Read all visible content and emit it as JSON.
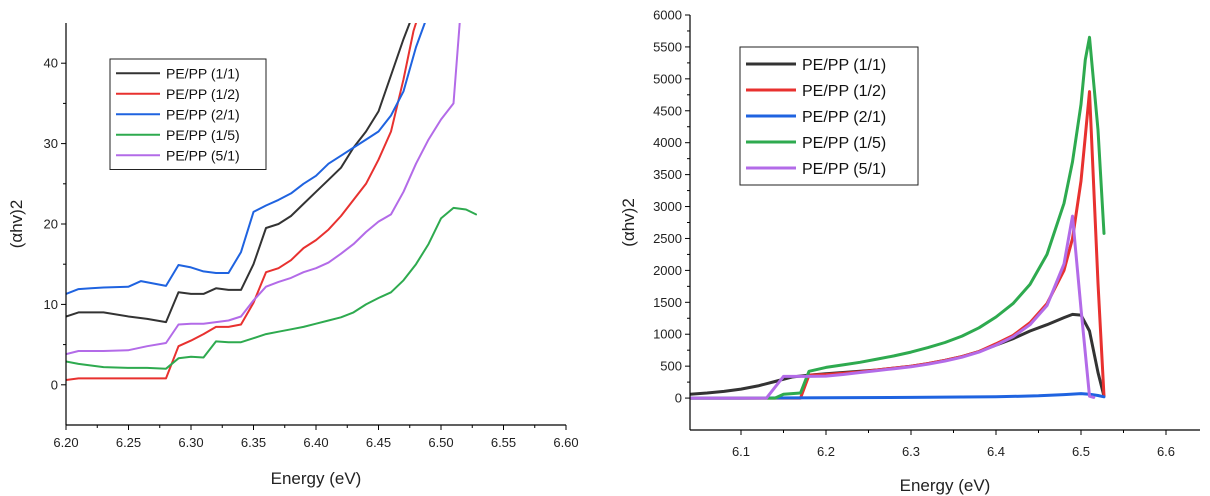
{
  "chart_data": [
    {
      "type": "line",
      "xlabel": "Energy (eV)",
      "ylabel": "(αhv)2",
      "xlim": [
        6.2,
        6.6
      ],
      "ylim": [
        -5,
        45
      ],
      "xticks": [
        "6.20",
        "6.25",
        "6.30",
        "6.35",
        "6.40",
        "6.45",
        "6.50",
        "6.55",
        "6.60"
      ],
      "yticks": [
        "0",
        "10",
        "20",
        "30",
        "40"
      ],
      "grid": false,
      "legend_position": "top-left",
      "series": [
        {
          "name": "PE/PP (1/1)",
          "color": "#333333",
          "x": [
            6.2,
            6.21,
            6.23,
            6.25,
            6.265,
            6.28,
            6.29,
            6.3,
            6.31,
            6.32,
            6.33,
            6.34,
            6.35,
            6.36,
            6.37,
            6.38,
            6.39,
            6.4,
            6.41,
            6.42,
            6.43,
            6.44,
            6.45,
            6.46,
            6.47,
            6.475,
            6.478
          ],
          "y": [
            8.5,
            9,
            9,
            8.5,
            8.2,
            7.8,
            11.5,
            11.3,
            11.3,
            12,
            11.8,
            11.8,
            15,
            19.5,
            20,
            21,
            22.5,
            24,
            25.5,
            27,
            29.5,
            31.5,
            34,
            38.5,
            43,
            45,
            46
          ]
        },
        {
          "name": "PE/PP (1/2)",
          "color": "#e8312f",
          "x": [
            6.2,
            6.21,
            6.23,
            6.25,
            6.265,
            6.28,
            6.29,
            6.3,
            6.31,
            6.32,
            6.33,
            6.34,
            6.35,
            6.36,
            6.37,
            6.38,
            6.39,
            6.4,
            6.41,
            6.42,
            6.43,
            6.44,
            6.45,
            6.46,
            6.47,
            6.478,
            6.482
          ],
          "y": [
            0.6,
            0.8,
            0.8,
            0.8,
            0.8,
            0.8,
            4.8,
            5.5,
            6.3,
            7.2,
            7.2,
            7.5,
            10.2,
            14,
            14.5,
            15.5,
            17,
            18,
            19.3,
            21,
            23,
            25,
            28,
            31.5,
            38,
            44,
            46
          ]
        },
        {
          "name": "PE/PP (2/1)",
          "color": "#1f63e0",
          "x": [
            6.2,
            6.21,
            6.22,
            6.23,
            6.25,
            6.26,
            6.28,
            6.29,
            6.3,
            6.31,
            6.32,
            6.33,
            6.34,
            6.35,
            6.36,
            6.37,
            6.38,
            6.39,
            6.4,
            6.41,
            6.42,
            6.43,
            6.44,
            6.45,
            6.46,
            6.47,
            6.48,
            6.487
          ],
          "y": [
            11.3,
            11.9,
            12,
            12.1,
            12.2,
            12.9,
            12.3,
            14.9,
            14.6,
            14.1,
            13.9,
            13.9,
            16.5,
            21.5,
            22.3,
            23,
            23.8,
            25,
            26,
            27.5,
            28.5,
            29.5,
            30.5,
            31.5,
            33.5,
            36.5,
            42,
            45
          ]
        },
        {
          "name": "PE/PP (1/5)",
          "color": "#2eaa4f",
          "x": [
            6.2,
            6.21,
            6.23,
            6.25,
            6.265,
            6.28,
            6.29,
            6.3,
            6.31,
            6.32,
            6.33,
            6.34,
            6.35,
            6.36,
            6.37,
            6.38,
            6.39,
            6.4,
            6.41,
            6.42,
            6.43,
            6.44,
            6.45,
            6.46,
            6.47,
            6.48,
            6.49,
            6.5,
            6.51,
            6.52,
            6.528
          ],
          "y": [
            2.9,
            2.6,
            2.2,
            2.1,
            2.1,
            2,
            3.3,
            3.5,
            3.4,
            5.4,
            5.3,
            5.3,
            5.8,
            6.3,
            6.6,
            6.9,
            7.2,
            7.6,
            8,
            8.4,
            9,
            10,
            10.8,
            11.5,
            13,
            15,
            17.5,
            20.7,
            22,
            21.8,
            21.2
          ]
        },
        {
          "name": "PE/PP (5/1)",
          "color": "#b36be8",
          "x": [
            6.2,
            6.21,
            6.23,
            6.25,
            6.265,
            6.28,
            6.29,
            6.3,
            6.31,
            6.32,
            6.33,
            6.34,
            6.35,
            6.36,
            6.37,
            6.38,
            6.39,
            6.4,
            6.41,
            6.42,
            6.43,
            6.44,
            6.45,
            6.46,
            6.47,
            6.48,
            6.49,
            6.5,
            6.51,
            6.515
          ],
          "y": [
            3.8,
            4.2,
            4.2,
            4.3,
            4.8,
            5.2,
            7.5,
            7.6,
            7.6,
            7.8,
            8,
            8.5,
            10.5,
            12.2,
            12.8,
            13.3,
            14,
            14.5,
            15.2,
            16.3,
            17.5,
            19,
            20.3,
            21.2,
            24,
            27.5,
            30.5,
            33,
            35,
            45
          ]
        }
      ]
    },
    {
      "type": "line",
      "xlabel": "Energy (eV)",
      "ylabel": "(αhv)2",
      "xlim": [
        6.04,
        6.64
      ],
      "ylim": [
        -500,
        6000
      ],
      "xticks": [
        "6.1",
        "6.2",
        "6.3",
        "6.4",
        "6.5",
        "6.6"
      ],
      "yticks": [
        "0",
        "500",
        "1000",
        "1500",
        "2000",
        "2500",
        "3000",
        "3500",
        "4000",
        "4500",
        "5000",
        "5500",
        "6000"
      ],
      "grid": false,
      "legend_position": "top-left",
      "series": [
        {
          "name": "PE/PP (1/1)",
          "color": "#333333",
          "x": [
            6.04,
            6.06,
            6.08,
            6.1,
            6.12,
            6.14,
            6.16,
            6.18,
            6.2,
            6.22,
            6.24,
            6.26,
            6.28,
            6.3,
            6.32,
            6.34,
            6.36,
            6.38,
            6.4,
            6.42,
            6.44,
            6.46,
            6.48,
            6.49,
            6.5,
            6.51,
            6.52,
            6.527
          ],
          "y": [
            60,
            80,
            105,
            140,
            190,
            260,
            330,
            360,
            380,
            400,
            420,
            440,
            470,
            500,
            540,
            590,
            650,
            730,
            830,
            930,
            1050,
            1150,
            1260,
            1310,
            1300,
            1050,
            400,
            30
          ]
        },
        {
          "name": "PE/PP (1/2)",
          "color": "#e8312f",
          "x": [
            6.04,
            6.1,
            6.15,
            6.17,
            6.18,
            6.2,
            6.22,
            6.24,
            6.26,
            6.28,
            6.3,
            6.32,
            6.34,
            6.36,
            6.38,
            6.4,
            6.42,
            6.44,
            6.46,
            6.48,
            6.49,
            6.5,
            6.505,
            6.51,
            6.52,
            6.527
          ],
          "y": [
            0,
            0,
            0,
            0,
            360,
            370,
            390,
            410,
            440,
            470,
            500,
            540,
            590,
            650,
            730,
            850,
            980,
            1180,
            1480,
            2000,
            2500,
            3400,
            4100,
            4800,
            1800,
            30
          ]
        },
        {
          "name": "PE/PP (2/1)",
          "color": "#1f63e0",
          "x": [
            6.04,
            6.1,
            6.2,
            6.3,
            6.4,
            6.45,
            6.48,
            6.5,
            6.51,
            6.52,
            6.527
          ],
          "y": [
            0,
            0,
            5,
            10,
            20,
            35,
            55,
            70,
            60,
            40,
            20
          ]
        },
        {
          "name": "PE/PP (1/5)",
          "color": "#2eaa4f",
          "x": [
            6.04,
            6.1,
            6.14,
            6.15,
            6.17,
            6.18,
            6.2,
            6.22,
            6.24,
            6.26,
            6.28,
            6.3,
            6.32,
            6.34,
            6.36,
            6.38,
            6.4,
            6.42,
            6.44,
            6.46,
            6.48,
            6.49,
            6.5,
            6.505,
            6.51,
            6.52,
            6.527
          ],
          "y": [
            0,
            0,
            0,
            60,
            80,
            420,
            480,
            520,
            560,
            610,
            660,
            720,
            790,
            870,
            970,
            1100,
            1270,
            1480,
            1780,
            2250,
            3050,
            3700,
            4600,
            5300,
            5650,
            4200,
            2580
          ]
        },
        {
          "name": "PE/PP (5/1)",
          "color": "#b36be8",
          "x": [
            6.04,
            6.13,
            6.15,
            6.16,
            6.18,
            6.2,
            6.22,
            6.24,
            6.26,
            6.28,
            6.3,
            6.32,
            6.34,
            6.36,
            6.38,
            6.4,
            6.42,
            6.44,
            6.46,
            6.48,
            6.49,
            6.5,
            6.51,
            6.515
          ],
          "y": [
            0,
            0,
            340,
            340,
            340,
            345,
            370,
            400,
            430,
            460,
            490,
            530,
            580,
            640,
            720,
            830,
            960,
            1150,
            1450,
            2100,
            2850,
            1400,
            30,
            10
          ]
        }
      ]
    }
  ]
}
